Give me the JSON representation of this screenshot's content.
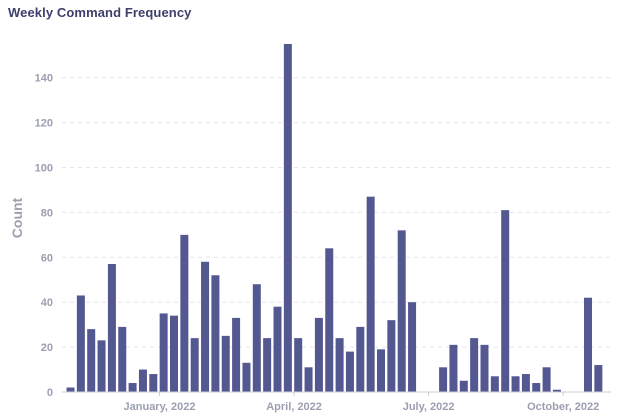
{
  "chart_data": {
    "type": "bar",
    "title": "Weekly Command Frequency",
    "xlabel": "",
    "ylabel": "Count",
    "ylim": [
      0,
      155
    ],
    "yticks": [
      0,
      20,
      40,
      60,
      80,
      100,
      120,
      140
    ],
    "grid": true,
    "bar_color": "#545891",
    "x_tick_labels": [
      {
        "label": "January, 2022",
        "index": 8.6
      },
      {
        "label": "April, 2022",
        "index": 21.6
      },
      {
        "label": "July, 2022",
        "index": 34.6
      },
      {
        "label": "October, 2022",
        "index": 47.6
      }
    ],
    "values": [
      2,
      43,
      28,
      23,
      57,
      29,
      4,
      10,
      8,
      35,
      34,
      70,
      24,
      58,
      52,
      25,
      33,
      13,
      48,
      24,
      38,
      155,
      24,
      11,
      33,
      64,
      24,
      18,
      29,
      87,
      19,
      32,
      72,
      40,
      0,
      0,
      11,
      21,
      5,
      24,
      21,
      7,
      81,
      7,
      8,
      4,
      11,
      1,
      0,
      0,
      42,
      12
    ]
  }
}
